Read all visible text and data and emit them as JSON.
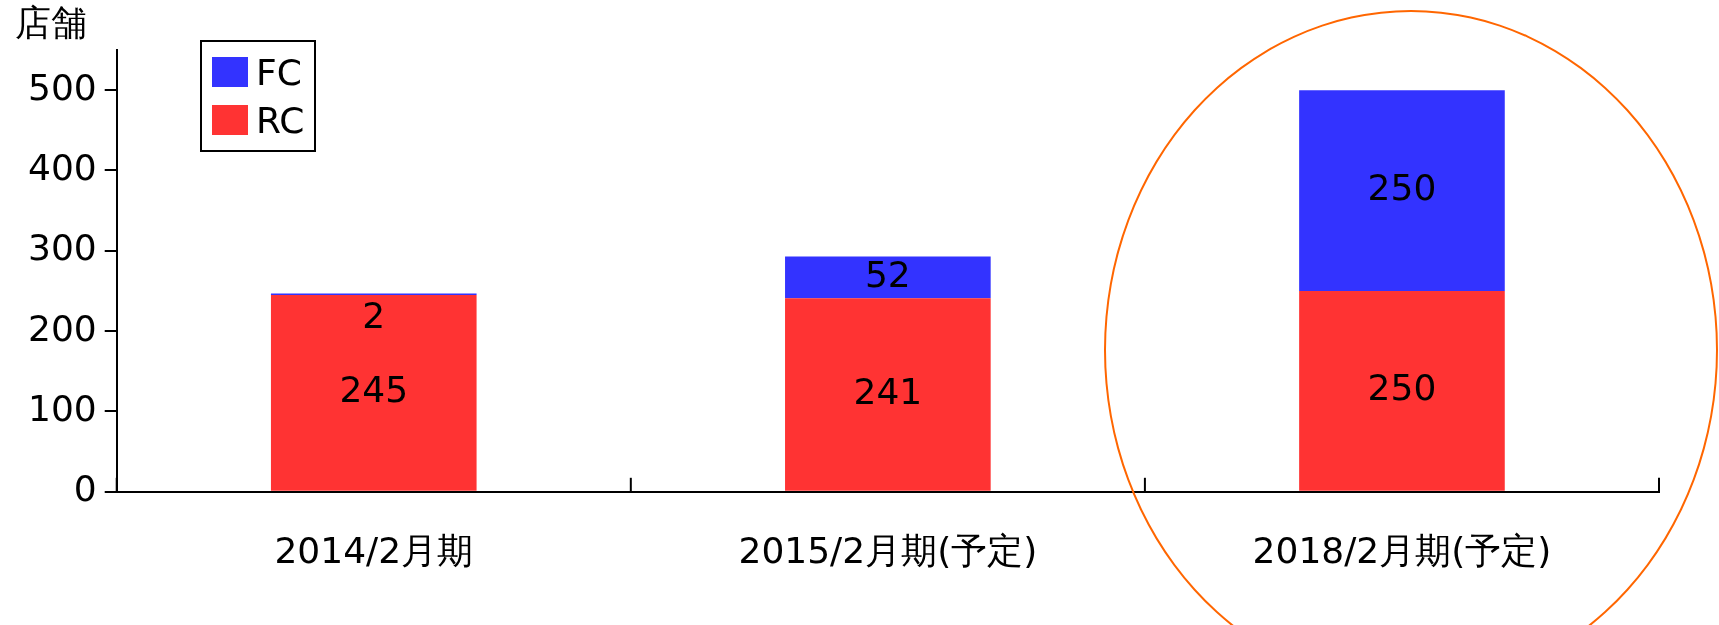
{
  "chart_data": {
    "type": "bar",
    "stacked": true,
    "ylabel": "店舗",
    "categories": [
      "2014/2月期",
      "2015/2月期(予定)",
      "2018/2月期(予定)"
    ],
    "series": [
      {
        "name": "RC",
        "color": "#ff3333",
        "values": [
          245,
          241,
          250
        ]
      },
      {
        "name": "FC",
        "color": "#3333ff",
        "values": [
          2,
          52,
          250
        ]
      }
    ],
    "ylim": [
      0,
      550
    ],
    "yticks": [
      0,
      100,
      200,
      300,
      400,
      500
    ],
    "grid": false,
    "legend": "top left",
    "data_labels": true
  }
}
